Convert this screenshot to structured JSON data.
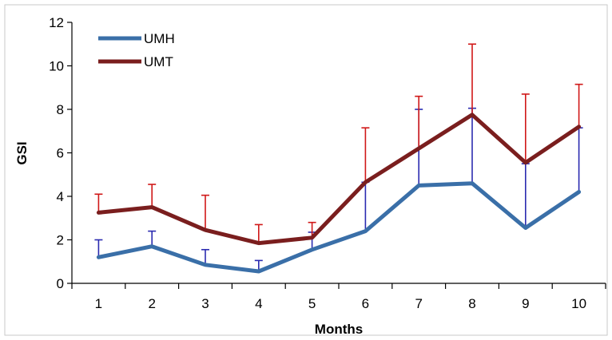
{
  "chart_data": {
    "type": "line",
    "title": "",
    "xlabel": "Months",
    "ylabel": "GSI",
    "x": [
      1,
      2,
      3,
      4,
      5,
      6,
      7,
      8,
      9,
      10
    ],
    "ylim": [
      0,
      12
    ],
    "yticks": [
      0,
      2,
      4,
      6,
      8,
      10,
      12
    ],
    "grid": false,
    "legend": "top-left",
    "error_bars": "upper",
    "series": [
      {
        "name": "UMH",
        "color": "#3a6fa8",
        "error_color": "#2b2bb0",
        "values": [
          1.2,
          1.7,
          0.85,
          0.55,
          1.55,
          2.4,
          4.5,
          4.6,
          2.55,
          4.2
        ],
        "error_upper": [
          2.0,
          2.4,
          1.55,
          1.05,
          2.35,
          4.65,
          8.0,
          8.05,
          5.5,
          7.15
        ]
      },
      {
        "name": "UMT",
        "color": "#7a1e1e",
        "error_color": "#d01818",
        "values": [
          3.25,
          3.5,
          2.45,
          1.85,
          2.1,
          4.65,
          6.2,
          7.75,
          5.55,
          7.2
        ],
        "error_upper": [
          4.1,
          4.55,
          4.05,
          2.7,
          2.8,
          7.15,
          8.6,
          11.0,
          8.7,
          9.15
        ]
      }
    ]
  }
}
